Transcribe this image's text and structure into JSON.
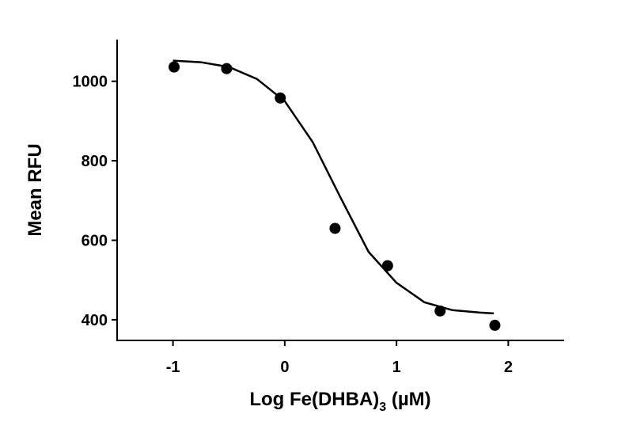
{
  "chart_data": {
    "type": "scatter",
    "xlabel": [
      "Log Fe(DHBA)",
      "3",
      " (µM)"
    ],
    "ylabel": "Mean RFU",
    "series": [
      {
        "kind": "points",
        "color": "#000000",
        "x": [
          -0.99,
          -0.52,
          -0.04,
          0.45,
          0.92,
          1.39,
          1.88
        ],
        "values": [
          1036,
          1032,
          958,
          630,
          536,
          422,
          386
        ]
      },
      {
        "kind": "line",
        "color": "#000000",
        "x": [
          -1.0,
          -0.75,
          -0.5,
          -0.25,
          0,
          0.25,
          0.5,
          0.75,
          1.0,
          1.25,
          1.5,
          1.75,
          1.87
        ],
        "values": [
          1052,
          1048,
          1036,
          1006,
          950,
          847,
          707,
          571,
          493,
          444,
          424,
          418,
          416
        ]
      }
    ],
    "xlim": [
      -1.5,
      2.5
    ],
    "xticks": [
      -1,
      0,
      1,
      2
    ],
    "ylim": [
      348,
      1105
    ],
    "yticks": [
      400,
      600,
      800,
      1000
    ]
  }
}
